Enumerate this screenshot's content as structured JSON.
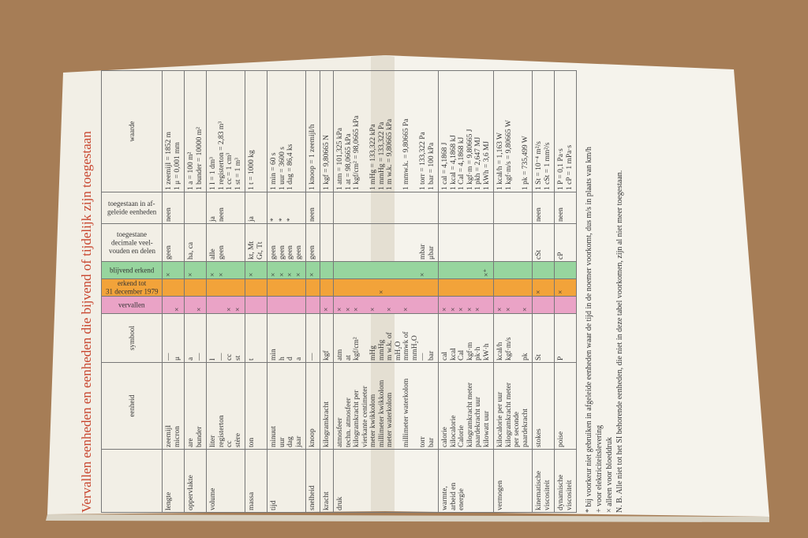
{
  "header": {
    "title": "Vervallen eenheden en eenheden die bijvend of tijdelijk zijn toegestaan"
  },
  "table": {
    "columns": [
      null,
      "eenheid",
      "symbool",
      "vervallen",
      "erkend tot\n31 december 1979",
      "blijvend erkend",
      "toegestane\ndecimale veel-\nvouden en delen",
      "toegestaan in af-\ngeleide eenheden",
      "waarde"
    ],
    "rows": [
      [
        "lengte",
        "zeemijl\nmicron",
        "—\nμ",
        "\n×",
        null,
        "×\n",
        "geen",
        "neen",
        "1 zeemijl = 1852 m\n1 μ = 0,001 mm"
      ],
      [
        "oppervlakte",
        "are\nbunder",
        "a\n—",
        "\n×",
        null,
        "×\n",
        "ha, ca",
        null,
        "1 a = 100 m²\n1 bunder = 10000 m²"
      ],
      [
        "volume",
        "liter\nregisterton\ncc\nstère",
        "l\n—\ncc\nst",
        "\n\n×\n×",
        null,
        "×\n×",
        "alle\ngeen",
        "ja\nneen",
        "1 l = 1 dm³\n1 registerton = 2,83 m³\n1 cc = 1 cm³\n1 st = 1 m³"
      ],
      [
        "massa",
        "ton",
        "t",
        null,
        null,
        "×",
        "kt, Mt\nGt, Tt",
        "ja",
        "1 t = 1000 kg"
      ],
      [
        "tijd",
        "minuut\nuur\ndag\njaar",
        "min\nh\nd\na",
        null,
        null,
        "×\n×\n×\n×",
        "geen\ngeen\ngeen\ngeen",
        "*\n*\n*",
        "1 min = 60 s\n1 uur = 3600 s\n1 dag = 86,4 ks"
      ],
      [
        "snelheid",
        "knoop",
        "—",
        null,
        null,
        "×",
        "geen",
        "neen",
        "1 knoop = 1 zeemijl/h"
      ],
      [
        "kracht",
        "kilogramkracht",
        "kgf",
        "×",
        null,
        null,
        null,
        null,
        "1 kgf = 9,80665 N"
      ],
      [
        "druk",
        "atmosfeer\ntechn. atmosfeer\nkilogramkracht per\nvierkante centimeter\nmeter kwikkolom\nmillimeter kwikkolom\nmeter waterkolom\n\nmillimeter waterkolom\n\ntorr\nbar",
        "atm\nat\nkgf/cm²\n\nmHg\nmmHg\nm w.k. of\nmH₂O\nmmwk of\nmmH₂O\n—\nbar",
        "×\n×\n×\n\n×\n\n×\n\n×",
        "\n\n\n\n\n×",
        "\n\n\n\n\n\n\n\n\n\n×\n",
        "\n\n\n\n\n\n\n\n\n\nmbar\nμbar",
        null,
        "1 atm = 101,325 kPa\n1 at = 98,0665 kPa\n1 kgf/cm² = 98,0665 kPa\n\n1 mHg = 133,322 kPa\n1 mmHg = 133,322 Pa\n1 m w.k. = 9,80665 kPa\n\n1 mmw.k. = 9,80665 Pa\n\n1 torr = 133,322 Pa\n1 bar = 100 kPa"
      ],
      [
        "warmte,\narbeid en\nenergie",
        "calorie\nkilocalorie\nCalorie\nkilogramkracht meter\npaardekracht uur\nkilowatt uur",
        "cal\nkcal\nCal\nkgf·m\npk·h\nkW·h",
        "×\n×\n×\n×\n×",
        null,
        "\n\n\n\n\n×⁺",
        null,
        null,
        "1 cal = 4,1868 J\n1 kcal = 4,1868 kJ\n1 Cal = 4,1868 kJ\n1 kgf·m = 9,80665 J\n1 pkh = 2,647 MJ\n1 kWh = 3,6 MJ"
      ],
      [
        "vermogen",
        "kilocalorie per uur\nkilogramkracht meter\nper seconde\npaardekracht",
        "kcal/h\nkgf·m/s\n\npk",
        "×\n×\n\n×",
        null,
        null,
        null,
        null,
        "1 kcal/h = 1,163 W\n1 kgf·m/s = 9,80665 W\n\n1 pk = 735,499 W"
      ],
      [
        "kinematische\nviscositeit",
        "stokes",
        "St",
        null,
        "×",
        null,
        "cSt",
        "neen",
        "1 St = 10⁻⁴ m²/s\n1 cSt = 1 mm²/s"
      ],
      [
        "dynamische\nviscositeit",
        "poise",
        "P",
        null,
        "×",
        null,
        "cP",
        "neen",
        "1 P = 0,1 Pa·s\n1 cP = 1 mPa·s"
      ]
    ]
  },
  "notes": [
    "* bij voorkeur niet gebruiken in afgeleide eenheden waar de tijd in de noemer voorkomt, dus m/s in plaats van km/h",
    "+ voor elektriciteitslevering",
    "× alleen voor bloeddruk",
    "N. B. Alle niet tot het SI behorende eenheden, die niet in deze tabel voorkomen, zijn al niet meer toegestaan."
  ]
}
